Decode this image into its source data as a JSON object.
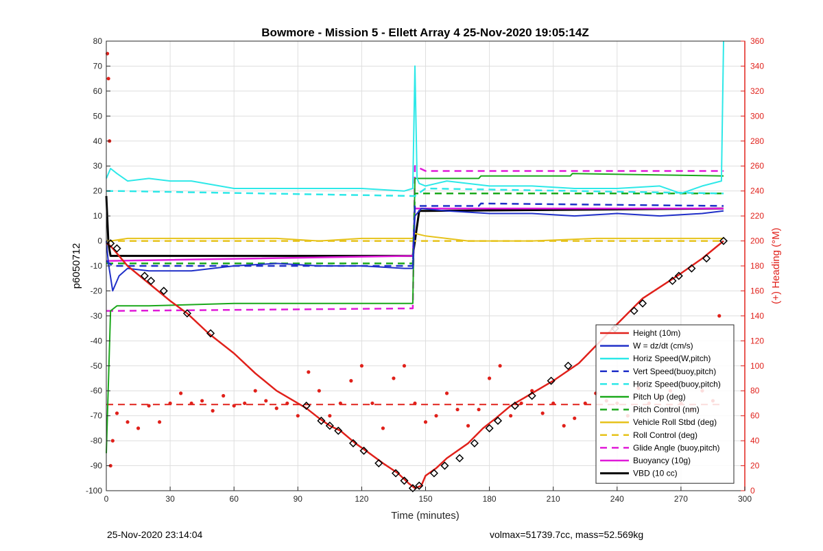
{
  "footer": {
    "left": "25-Nov-2020 23:14:04",
    "right": "volmax=51739.7cc, mass=52.569kg"
  },
  "chart_data": {
    "type": "line",
    "title": "Bowmore - Mission 5 - Ellett Array 4 25-Nov-2020 19:05:14Z",
    "xlabel": "Time (minutes)",
    "ylabel_left": "p6050712",
    "ylabel_right": "(+) Heading (°M)",
    "xlim": [
      0,
      300
    ],
    "ylim_left": [
      -100,
      80
    ],
    "ylim_right": [
      0,
      360
    ],
    "xticks": [
      0,
      30,
      60,
      90,
      120,
      150,
      180,
      210,
      240,
      270,
      300
    ],
    "yticks_left": [
      -100,
      -90,
      -80,
      -70,
      -60,
      -50,
      -40,
      -30,
      -20,
      -10,
      0,
      10,
      20,
      30,
      40,
      50,
      60,
      70,
      80
    ],
    "yticks_right": [
      0,
      20,
      40,
      60,
      80,
      100,
      120,
      140,
      160,
      180,
      200,
      220,
      240,
      260,
      280,
      300,
      320,
      340,
      360
    ],
    "grid": true,
    "legend_position": "bottom-right",
    "colors": {
      "red": "#e0201a",
      "blue": "#1f2fc8",
      "cyan": "#2de8e8",
      "green": "#1aa81a",
      "yellow": "#e6c21a",
      "magenta": "#e01ad8",
      "black": "#000000",
      "right_axis": "#e0201a"
    },
    "series": [
      {
        "name": "Height (10m)",
        "color": "#e0201a",
        "style": "solid",
        "width": 2.5,
        "x": [
          0,
          2,
          10,
          20,
          30,
          38,
          48,
          60,
          70,
          80,
          94,
          100,
          105,
          110,
          117,
          122,
          130,
          137,
          142,
          145,
          148,
          150,
          155,
          160,
          170,
          177,
          183,
          190,
          198,
          210,
          222,
          238,
          252,
          270,
          280,
          290
        ],
        "y": [
          -1,
          -2,
          -10,
          -17,
          -24,
          -29,
          -37,
          -45,
          -53,
          -60,
          -67,
          -71,
          -74,
          -76,
          -81,
          -84,
          -89,
          -93,
          -97,
          -99,
          -98,
          -94,
          -91,
          -87,
          -81,
          -75,
          -71,
          -66,
          -62,
          -56,
          -49,
          -35,
          -23,
          -13,
          -7,
          0
        ]
      },
      {
        "name": "W = dz/dt (cm/s)",
        "color": "#1f2fc8",
        "style": "solid",
        "width": 2,
        "x": [
          0,
          1,
          3,
          6,
          10,
          20,
          40,
          60,
          80,
          100,
          120,
          140,
          144,
          145,
          148,
          160,
          180,
          200,
          220,
          240,
          260,
          280,
          290
        ],
        "y": [
          0,
          -9,
          -20,
          -14,
          -11,
          -12,
          -12,
          -10,
          -9,
          -10,
          -10,
          -11,
          -11,
          10,
          13,
          12,
          11,
          11,
          10,
          11,
          10,
          11,
          12
        ]
      },
      {
        "name": "Horiz Speed(W,pitch)",
        "color": "#2de8e8",
        "style": "solid",
        "width": 2,
        "x": [
          0,
          2,
          5,
          10,
          20,
          30,
          40,
          60,
          80,
          100,
          120,
          140,
          144,
          145,
          146,
          147,
          150,
          160,
          180,
          200,
          220,
          240,
          260,
          270,
          280,
          289,
          290
        ],
        "y": [
          25,
          29,
          27,
          24,
          25,
          24,
          24,
          21,
          21,
          21,
          21,
          20,
          21,
          70,
          25,
          23,
          22,
          24,
          22,
          22,
          21,
          21,
          22,
          19,
          22,
          24,
          80
        ]
      },
      {
        "name": "Vert Speed(buoy,pitch)",
        "color": "#1f2fc8",
        "style": "dashed",
        "width": 2.5,
        "x": [
          0,
          3,
          10,
          144,
          145,
          150,
          175,
          176,
          290
        ],
        "y": [
          -8,
          -10,
          -10,
          -10,
          14,
          14,
          14,
          15,
          14
        ]
      },
      {
        "name": "Horiz Speed(buoy,pitch)",
        "color": "#2de8e8",
        "style": "dashed",
        "width": 2.5,
        "x": [
          0,
          5,
          144,
          145,
          150,
          290
        ],
        "y": [
          20,
          20,
          18,
          18,
          21,
          19
        ]
      },
      {
        "name": "Pitch Up (deg)",
        "color": "#1aa81a",
        "style": "solid",
        "width": 2,
        "x": [
          0,
          2,
          5,
          20,
          60,
          100,
          140,
          144,
          145,
          150,
          175,
          176,
          218,
          219,
          290
        ],
        "y": [
          -85,
          -28,
          -26,
          -26,
          -25,
          -25,
          -25,
          -25,
          25,
          25,
          25,
          26,
          26,
          27,
          26
        ]
      },
      {
        "name": "Pitch Control (nm)",
        "color": "#1aa81a",
        "style": "dashed",
        "width": 2.5,
        "x": [
          0,
          3,
          144,
          145,
          150,
          290
        ],
        "y": [
          -9,
          -9,
          -9,
          19,
          19,
          19
        ]
      },
      {
        "name": "Vehicle Roll Stbd (deg)",
        "color": "#e6c21a",
        "style": "solid",
        "width": 2,
        "x": [
          0,
          2,
          10,
          40,
          80,
          100,
          120,
          140,
          144,
          145,
          150,
          170,
          200,
          230,
          260,
          290
        ],
        "y": [
          0,
          0,
          1,
          1,
          1,
          0,
          1,
          1,
          1,
          3,
          2,
          0,
          0,
          1,
          1,
          1
        ]
      },
      {
        "name": "Roll Control (deg)",
        "color": "#e6c21a",
        "style": "dashed",
        "width": 2.5,
        "x": [
          0,
          290
        ],
        "y": [
          0,
          0
        ]
      },
      {
        "name": "Glide Angle (buoy,pitch)",
        "color": "#e01ad8",
        "style": "dashed",
        "width": 2.5,
        "x": [
          0,
          5,
          144,
          145,
          150,
          290
        ],
        "y": [
          -28,
          -28,
          -27,
          30,
          28,
          28
        ]
      },
      {
        "name": "Buoyancy (10g)",
        "color": "#e01ad8",
        "style": "solid",
        "width": 2.5,
        "x": [
          0,
          144,
          145,
          148,
          290
        ],
        "y": [
          -8,
          -6,
          13,
          13,
          13
        ]
      },
      {
        "name": "VBD (10 cc)",
        "color": "#000000",
        "style": "solid",
        "width": 3,
        "x": [
          0,
          1,
          2,
          3,
          144,
          147,
          150,
          290
        ],
        "y": [
          18,
          -1,
          -6,
          -6,
          -6,
          12,
          12,
          13
        ]
      }
    ],
    "heading_series": {
      "name": "Heading",
      "axis": "right",
      "color": "#e0201a",
      "style": "dots",
      "x": [
        0.5,
        1,
        1.5,
        2,
        3,
        5,
        10,
        15,
        20,
        25,
        30,
        35,
        40,
        45,
        50,
        55,
        60,
        65,
        70,
        75,
        80,
        85,
        90,
        95,
        100,
        105,
        110,
        115,
        120,
        125,
        130,
        135,
        140,
        145,
        150,
        155,
        160,
        165,
        170,
        175,
        180,
        185,
        190,
        195,
        200,
        205,
        210,
        215,
        220,
        225,
        230,
        235,
        240,
        245,
        250,
        255,
        260,
        265,
        270,
        275,
        280,
        285,
        288
      ],
      "y": [
        350,
        330,
        280,
        20,
        40,
        62,
        55,
        50,
        68,
        55,
        70,
        78,
        70,
        72,
        64,
        76,
        68,
        70,
        80,
        72,
        66,
        70,
        60,
        95,
        80,
        60,
        70,
        88,
        100,
        70,
        50,
        90,
        100,
        70,
        55,
        60,
        78,
        65,
        52,
        65,
        90,
        100,
        60,
        70,
        80,
        62,
        70,
        52,
        58,
        70,
        78,
        72,
        70,
        60,
        82,
        70,
        75,
        80,
        70,
        65,
        80,
        72,
        140
      ]
    },
    "heading_target": {
      "axis": "right",
      "color": "#e0201a",
      "style": "dashed",
      "value": 69,
      "x": [
        0,
        290
      ]
    },
    "markers": {
      "color": "#000000",
      "x": [
        2,
        5,
        18,
        21,
        27,
        38,
        49,
        94,
        101,
        105,
        109,
        116,
        121,
        128,
        136,
        140,
        144,
        147,
        154,
        159,
        166,
        173,
        180,
        184,
        192,
        200,
        209,
        217,
        239,
        248,
        252,
        266,
        269,
        275,
        282,
        290
      ],
      "y": [
        -1,
        -3,
        -14,
        -16,
        -20,
        -29,
        -37,
        -66,
        -72,
        -74,
        -76,
        -81,
        -84,
        -89,
        -93,
        -96,
        -99,
        -98,
        -93,
        -90,
        -87,
        -81,
        -75,
        -72,
        -66,
        -62,
        -56,
        -50,
        -35,
        -28,
        -25,
        -16,
        -14,
        -11,
        -7,
        0
      ]
    }
  }
}
